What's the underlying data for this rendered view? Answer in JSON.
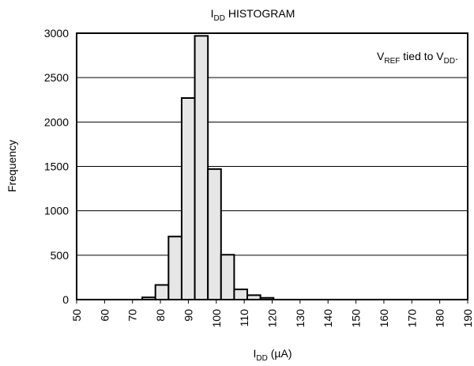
{
  "chart_data": {
    "type": "histogram",
    "title": [
      "I",
      "DD",
      " HISTOGRAM"
    ],
    "annotation": [
      "V",
      "REF",
      " tied to V",
      "DD",
      "."
    ],
    "xlabel": [
      "I",
      "DD",
      " (µA)"
    ],
    "ylabel": "Frequency",
    "bins": [
      73.5,
      78.2,
      82.9,
      87.6,
      92.3,
      97.0,
      101.7,
      106.4,
      111.1,
      115.8,
      120.5
    ],
    "values": [
      25,
      165,
      710,
      2270,
      2970,
      1470,
      505,
      115,
      50,
      20
    ],
    "color": "#e6e6e6",
    "xlim": [
      50,
      190
    ],
    "xticks": [
      50,
      60,
      70,
      80,
      90,
      100,
      110,
      120,
      130,
      140,
      150,
      160,
      170,
      180,
      190
    ],
    "ylim": [
      0,
      3000
    ],
    "yticks": [
      0,
      500,
      1000,
      1500,
      2000,
      2500,
      3000
    ],
    "grid": true
  }
}
